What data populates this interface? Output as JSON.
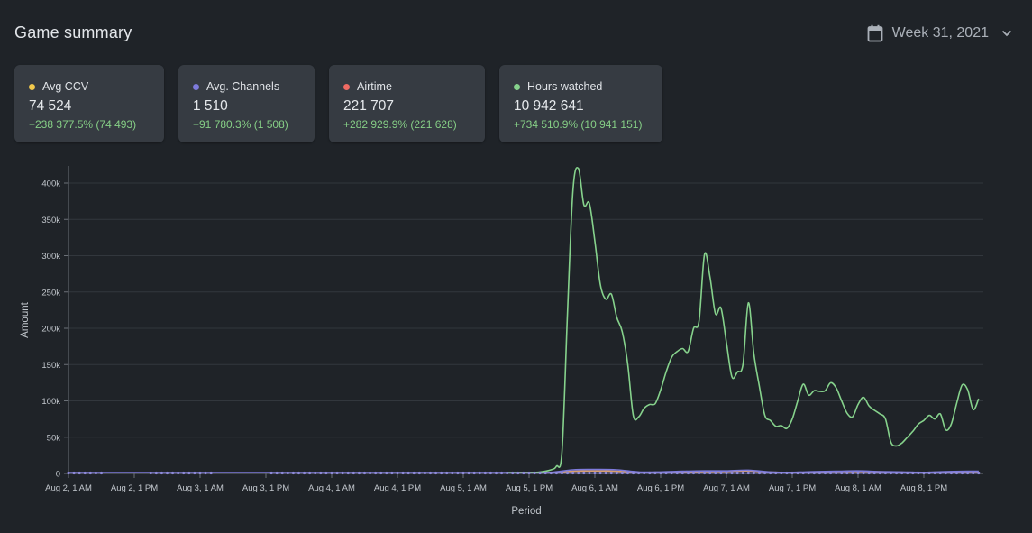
{
  "header": {
    "title": "Game summary",
    "week_label": "Week 31, 2021",
    "calendar_icon": "calendar-icon",
    "chevron_icon": "chevron-down-icon"
  },
  "cards": [
    {
      "title": "Avg CCV",
      "value": "74 524",
      "delta": "+238 377.5% (74 493)",
      "color": "#f2c94c"
    },
    {
      "title": "Avg. Channels",
      "value": "1 510",
      "delta": "+91 780.3% (1 508)",
      "color": "#7e7bdc"
    },
    {
      "title": "Airtime",
      "value": "221 707",
      "delta": "+282 929.9% (221 628)",
      "color": "#ef6a63"
    },
    {
      "title": "Hours watched",
      "value": "10 942 641",
      "delta": "+734 510.9% (10 941 151)",
      "color": "#86d28c"
    }
  ],
  "chart_data": {
    "type": "line",
    "xlabel": "Period",
    "ylabel": "Amount",
    "ylim": [
      0,
      420000
    ],
    "yticks": [
      0,
      50000,
      100000,
      150000,
      200000,
      250000,
      300000,
      350000,
      400000
    ],
    "ytick_labels": [
      "0",
      "50k",
      "100k",
      "150k",
      "200k",
      "250k",
      "300k",
      "350k",
      "400k"
    ],
    "xlim": [
      0,
      170
    ],
    "xticks": [
      0,
      12,
      24,
      36,
      48,
      60,
      72,
      84,
      96,
      108,
      120,
      132,
      144,
      156
    ],
    "xtick_labels": [
      "Aug 2, 1 AM",
      "Aug 2, 1 PM",
      "Aug 3, 1 AM",
      "Aug 3, 1 PM",
      "Aug 4, 1 AM",
      "Aug 4, 1 PM",
      "Aug 5, 1 AM",
      "Aug 5, 1 PM",
      "Aug 6, 1 AM",
      "Aug 6, 1 PM",
      "Aug 7, 1 AM",
      "Aug 7, 1 PM",
      "Aug 8, 1 AM",
      "Aug 8, 1 PM"
    ],
    "grid": true,
    "series": [
      {
        "name": "Hours watched",
        "color": "#86d28c",
        "points": [
          [
            80,
            0
          ],
          [
            82,
            500
          ],
          [
            84,
            1000
          ],
          [
            86,
            2000
          ],
          [
            88,
            5000
          ],
          [
            89,
            10000
          ],
          [
            90,
            30000
          ],
          [
            91,
            220000
          ],
          [
            92,
            390000
          ],
          [
            93,
            420000
          ],
          [
            94,
            370000
          ],
          [
            95,
            372000
          ],
          [
            96,
            320000
          ],
          [
            97,
            260000
          ],
          [
            98,
            240000
          ],
          [
            99,
            247000
          ],
          [
            100,
            215000
          ],
          [
            101,
            195000
          ],
          [
            102,
            150000
          ],
          [
            103,
            80000
          ],
          [
            104,
            78000
          ],
          [
            105,
            90000
          ],
          [
            106,
            95000
          ],
          [
            107,
            96000
          ],
          [
            108,
            115000
          ],
          [
            109,
            140000
          ],
          [
            110,
            160000
          ],
          [
            111,
            168000
          ],
          [
            112,
            172000
          ],
          [
            113,
            168000
          ],
          [
            114,
            200000
          ],
          [
            115,
            210000
          ],
          [
            116,
            302000
          ],
          [
            117,
            270000
          ],
          [
            118,
            220000
          ],
          [
            119,
            228000
          ],
          [
            120,
            180000
          ],
          [
            121,
            133000
          ],
          [
            122,
            140000
          ],
          [
            123,
            150000
          ],
          [
            124,
            235000
          ],
          [
            125,
            165000
          ],
          [
            126,
            120000
          ],
          [
            127,
            80000
          ],
          [
            128,
            73000
          ],
          [
            129,
            65000
          ],
          [
            130,
            66000
          ],
          [
            131,
            62000
          ],
          [
            132,
            75000
          ],
          [
            133,
            100000
          ],
          [
            134,
            123000
          ],
          [
            135,
            108000
          ],
          [
            136,
            114000
          ],
          [
            137,
            113000
          ],
          [
            138,
            114000
          ],
          [
            139,
            125000
          ],
          [
            140,
            118000
          ],
          [
            141,
            100000
          ],
          [
            142,
            83000
          ],
          [
            143,
            78000
          ],
          [
            144,
            95000
          ],
          [
            145,
            105000
          ],
          [
            146,
            93000
          ],
          [
            147,
            87000
          ],
          [
            148,
            82000
          ],
          [
            149,
            75000
          ],
          [
            150,
            43000
          ],
          [
            151,
            38000
          ],
          [
            152,
            42000
          ],
          [
            153,
            50000
          ],
          [
            154,
            58000
          ],
          [
            155,
            68000
          ],
          [
            156,
            73000
          ],
          [
            157,
            80000
          ],
          [
            158,
            75000
          ],
          [
            159,
            82000
          ],
          [
            160,
            60000
          ],
          [
            161,
            68000
          ],
          [
            162,
            97000
          ],
          [
            163,
            122000
          ],
          [
            164,
            115000
          ],
          [
            165,
            88000
          ],
          [
            166,
            103000
          ]
        ]
      },
      {
        "name": "Avg. Channels",
        "color": "#7e7bdc",
        "points": [
          [
            0,
            0
          ],
          [
            6,
            0
          ],
          [
            12,
            0
          ],
          [
            18,
            0
          ],
          [
            24,
            0
          ],
          [
            30,
            0
          ],
          [
            36,
            0
          ],
          [
            42,
            0
          ],
          [
            48,
            0
          ],
          [
            54,
            0
          ],
          [
            60,
            0
          ],
          [
            66,
            0
          ],
          [
            72,
            0
          ],
          [
            78,
            0
          ],
          [
            84,
            500
          ],
          [
            88,
            1500
          ],
          [
            92,
            5000
          ],
          [
            96,
            5500
          ],
          [
            100,
            5000
          ],
          [
            104,
            2000
          ],
          [
            108,
            2000
          ],
          [
            112,
            3000
          ],
          [
            116,
            3500
          ],
          [
            120,
            3500
          ],
          [
            124,
            4500
          ],
          [
            128,
            2000
          ],
          [
            132,
            1500
          ],
          [
            136,
            2500
          ],
          [
            140,
            3000
          ],
          [
            144,
            3500
          ],
          [
            148,
            2500
          ],
          [
            152,
            2000
          ],
          [
            156,
            1500
          ],
          [
            160,
            2500
          ],
          [
            164,
            3000
          ],
          [
            166,
            3000
          ]
        ]
      },
      {
        "name": "Avg CCV",
        "color": "#d9a06c",
        "points": [
          [
            82,
            0
          ],
          [
            88,
            800
          ],
          [
            92,
            3000
          ],
          [
            96,
            3500
          ],
          [
            100,
            3000
          ],
          [
            104,
            1500
          ],
          [
            110,
            1500
          ],
          [
            116,
            2500
          ],
          [
            120,
            2800
          ],
          [
            124,
            3500
          ],
          [
            128,
            1800
          ],
          [
            132,
            1200
          ],
          [
            136,
            2000
          ],
          [
            140,
            2500
          ],
          [
            144,
            2800
          ],
          [
            148,
            2200
          ],
          [
            152,
            1600
          ],
          [
            156,
            1300
          ],
          [
            160,
            2000
          ],
          [
            164,
            2400
          ],
          [
            166,
            2400
          ]
        ]
      }
    ],
    "markers": {
      "name": "Airtime",
      "color": "#8e8ad8",
      "x": [
        0,
        1,
        2,
        3,
        4,
        5,
        6,
        15,
        16,
        17,
        18,
        19,
        20,
        21,
        22,
        23,
        24,
        25,
        26,
        37,
        38,
        39,
        40,
        41,
        42,
        43,
        44,
        45,
        46,
        47,
        48,
        49,
        50,
        51,
        52,
        53,
        54,
        55,
        56,
        57,
        58,
        59,
        60,
        61,
        62,
        63,
        64,
        65,
        66,
        67,
        68,
        69,
        70,
        71,
        72,
        73,
        74,
        75,
        76,
        77,
        78,
        79,
        80,
        81,
        82,
        83,
        84,
        85,
        86,
        87,
        88,
        89,
        90,
        91,
        92,
        93,
        94,
        95,
        96,
        97,
        98,
        99,
        100,
        101,
        102,
        103,
        104,
        105,
        106,
        107,
        108,
        109,
        110,
        111,
        112,
        113,
        114,
        115,
        116,
        117,
        118,
        119,
        120,
        121,
        122,
        123,
        124,
        125,
        126,
        127,
        128,
        129,
        130,
        131,
        132,
        133,
        134,
        135,
        136,
        137,
        138,
        139,
        140,
        141,
        142,
        143,
        144,
        145,
        146,
        147,
        148,
        149,
        150,
        151,
        152,
        153,
        154,
        155,
        156,
        157,
        158,
        159,
        160,
        161,
        162,
        163,
        164,
        165,
        166
      ],
      "value": 0
    }
  }
}
